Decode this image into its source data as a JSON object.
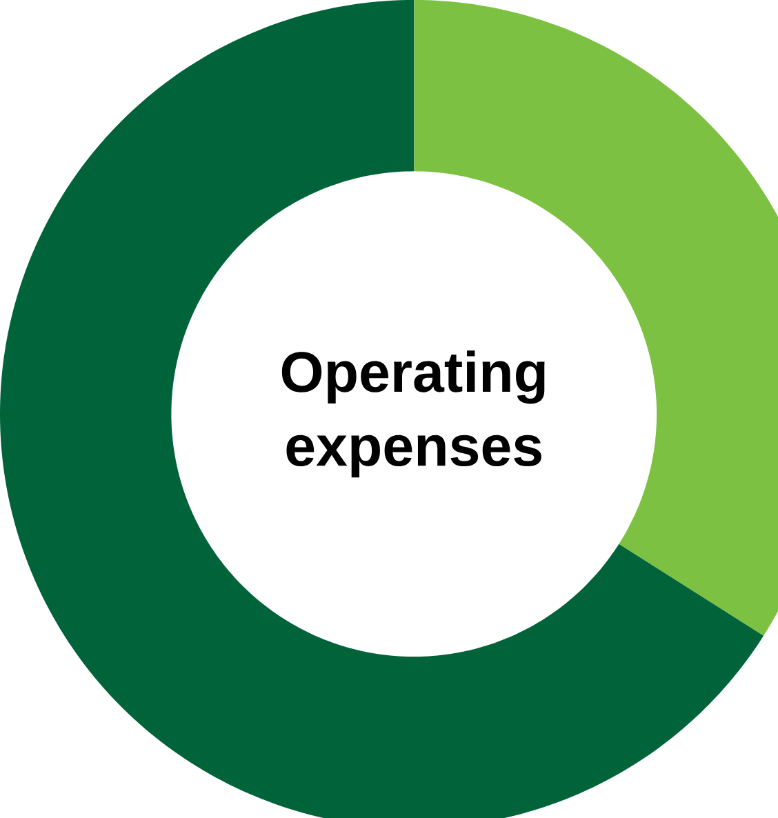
{
  "chart_data": {
    "type": "donut",
    "title": "Operating expenses",
    "categories": [
      null,
      null
    ],
    "values": [
      34,
      66
    ],
    "colors": [
      "#7dc142",
      "#00633a"
    ]
  }
}
